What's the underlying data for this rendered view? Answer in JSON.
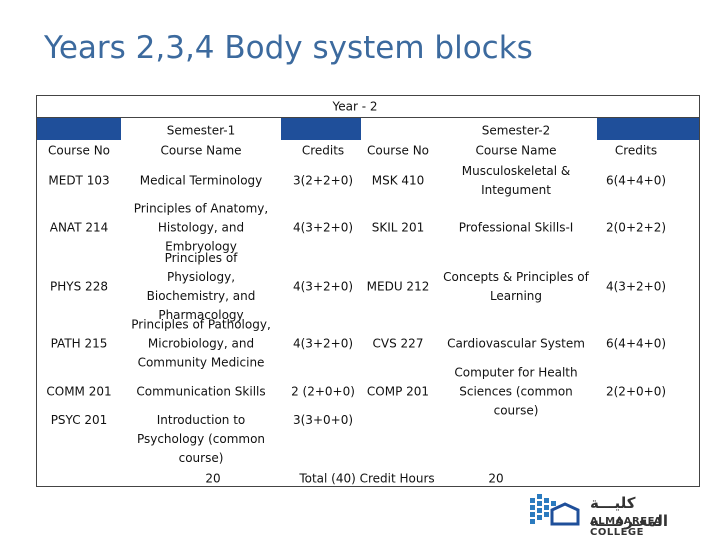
{
  "title": "Years 2,3,4 Body system blocks",
  "table": {
    "year": "Year - 2",
    "semesters": [
      "Semester-1",
      "Semester-2"
    ],
    "columns": [
      "Course No",
      "Course Name",
      "Credits",
      "Course No",
      "Course Name",
      "Credits"
    ],
    "rows": [
      {
        "left": [
          "MEDT 103",
          "Medical Terminology",
          "3(2+2+0)"
        ],
        "right": [
          "MSK 410",
          "Musculoskeletal & Integument",
          "6(4+4+0)"
        ]
      },
      {
        "left": [
          "ANAT 214",
          "Principles of Anatomy, Histology, and Embryology",
          "4(3+2+0)"
        ],
        "right": [
          "SKIL 201",
          "Professional Skills-I",
          "2(0+2+2)"
        ]
      },
      {
        "left": [
          "PHYS 228",
          "Principles of Physiology, Biochemistry, and Pharmacology",
          "4(3+2+0)"
        ],
        "right": [
          "MEDU 212",
          "Concepts & Principles of Learning",
          "4(3+2+0)"
        ]
      },
      {
        "left": [
          "PATH 215",
          "Principles of Pathology, Microbiology, and Community Medicine",
          "4(3+2+0)"
        ],
        "right": [
          "CVS 227",
          "Cardiovascular System",
          "6(4+4+0)"
        ]
      },
      {
        "left": [
          "COMM 201",
          "Communication Skills",
          "2 (2+0+0)"
        ],
        "right": [
          "COMP 201",
          "Computer for Health Sciences (common course)",
          "2(2+0+0)"
        ]
      },
      {
        "left": [
          "PSYC 201",
          "Introduction to Psychology (common course)",
          "3(3+0+0)"
        ]
      }
    ],
    "semester1_total": "20",
    "total_label": "Total (40) Credit Hours",
    "semester2_total": "20"
  },
  "logo": {
    "arabic": "كليـــة المعـرفـــة",
    "name": "ALMAAREFA COLLEGE"
  }
}
